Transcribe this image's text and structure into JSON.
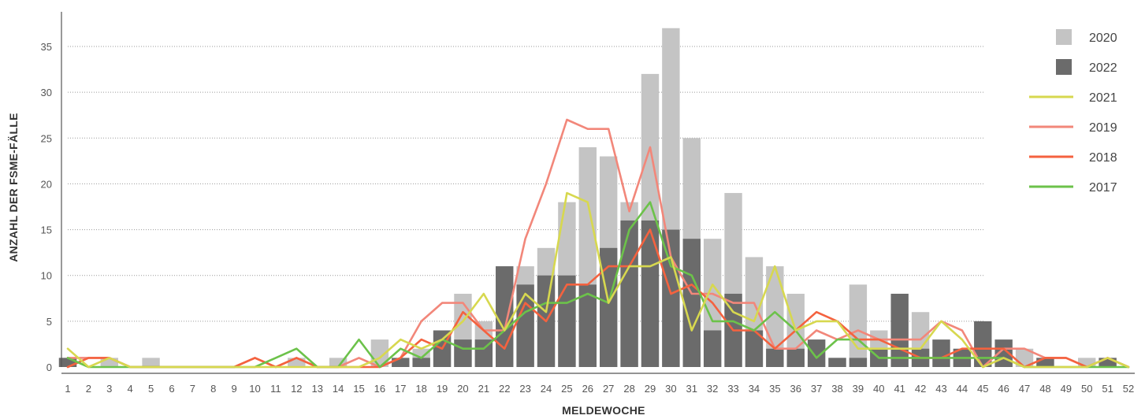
{
  "chart_data": {
    "type": "bar",
    "xlabel": "MELDEWOCHE",
    "ylabel": "ANZAHL DER FSME-FÄLLE",
    "ylim": [
      0,
      38
    ],
    "yticks": [
      0,
      5,
      10,
      15,
      20,
      25,
      30,
      35
    ],
    "grid": "horizontal-dotted",
    "legend_position": "top-right",
    "categories": [
      "1",
      "2",
      "3",
      "4",
      "5",
      "6",
      "7",
      "8",
      "9",
      "10",
      "11",
      "12",
      "13",
      "14",
      "15",
      "16",
      "17",
      "18",
      "19",
      "20",
      "21",
      "22",
      "23",
      "24",
      "25",
      "26",
      "27",
      "28",
      "29",
      "30",
      "31",
      "32",
      "33",
      "34",
      "35",
      "36",
      "37",
      "38",
      "39",
      "40",
      "41",
      "42",
      "43",
      "44",
      "45",
      "46",
      "47",
      "48",
      "49",
      "50",
      "51",
      "52"
    ],
    "bars": [
      {
        "name": "2020",
        "color": "#c4c4c4",
        "values": [
          1,
          0,
          1,
          0,
          1,
          0,
          0,
          0,
          0,
          0,
          0,
          1,
          0,
          1,
          0,
          3,
          0,
          2,
          4,
          8,
          5,
          11,
          11,
          13,
          18,
          24,
          23,
          18,
          32,
          37,
          25,
          14,
          19,
          12,
          11,
          8,
          3,
          1,
          9,
          4,
          0,
          6,
          0,
          1,
          0,
          1,
          2,
          1,
          0,
          1,
          1,
          0
        ]
      },
      {
        "name": "2022",
        "color": "#6b6b6b",
        "values": [
          1,
          0,
          0,
          0,
          0,
          0,
          0,
          0,
          0,
          0,
          0,
          0,
          0,
          0,
          0,
          0,
          1,
          1,
          4,
          3,
          3,
          11,
          9,
          10,
          10,
          9,
          13,
          16,
          16,
          15,
          14,
          4,
          8,
          4,
          2,
          2,
          3,
          1,
          1,
          2,
          8,
          2,
          3,
          2,
          5,
          3,
          0,
          1,
          0,
          0,
          1,
          0
        ]
      }
    ],
    "lines": [
      {
        "name": "2021",
        "color": "#d7d84f",
        "values": [
          2,
          0,
          1,
          0,
          0,
          0,
          0,
          0,
          0,
          0,
          0,
          0,
          0,
          0,
          0,
          1,
          3,
          2,
          3,
          5,
          8,
          4,
          8,
          6,
          19,
          18,
          7,
          11,
          11,
          12,
          4,
          9,
          6,
          5,
          11,
          4,
          5,
          5,
          2,
          2,
          2,
          2,
          5,
          3,
          0,
          1,
          0,
          0,
          0,
          0,
          1,
          0
        ]
      },
      {
        "name": "2019",
        "color": "#f2877a",
        "values": [
          1,
          1,
          1,
          0,
          0,
          0,
          0,
          0,
          0,
          1,
          0,
          1,
          0,
          0,
          1,
          0,
          1,
          5,
          7,
          7,
          4,
          4,
          14,
          20,
          27,
          26,
          26,
          17,
          24,
          12,
          8,
          8,
          7,
          7,
          2,
          2,
          4,
          3,
          4,
          3,
          3,
          3,
          5,
          4,
          0,
          2,
          2,
          1,
          1,
          0,
          1,
          0
        ]
      },
      {
        "name": "2018",
        "color": "#f4623f",
        "values": [
          0,
          1,
          1,
          0,
          0,
          0,
          0,
          0,
          0,
          1,
          0,
          1,
          0,
          0,
          0,
          0,
          1,
          3,
          2,
          6,
          4,
          2,
          7,
          5,
          9,
          9,
          11,
          11,
          15,
          8,
          9,
          7,
          4,
          4,
          2,
          4,
          6,
          5,
          3,
          3,
          2,
          1,
          1,
          2,
          2,
          2,
          0,
          1,
          1,
          0,
          1,
          0
        ]
      },
      {
        "name": "2017",
        "color": "#6cc24a",
        "values": [
          1,
          0,
          0,
          0,
          0,
          0,
          0,
          0,
          0,
          0,
          1,
          2,
          0,
          0,
          3,
          0,
          2,
          1,
          3,
          2,
          2,
          4,
          6,
          7,
          7,
          8,
          7,
          15,
          18,
          11,
          10,
          5,
          5,
          4,
          6,
          4,
          1,
          3,
          3,
          1,
          1,
          1,
          1,
          1,
          1,
          1,
          0,
          0,
          0,
          0,
          0,
          0
        ]
      }
    ],
    "legend_order": [
      "2020",
      "2022",
      "2021",
      "2019",
      "2018",
      "2017"
    ]
  }
}
